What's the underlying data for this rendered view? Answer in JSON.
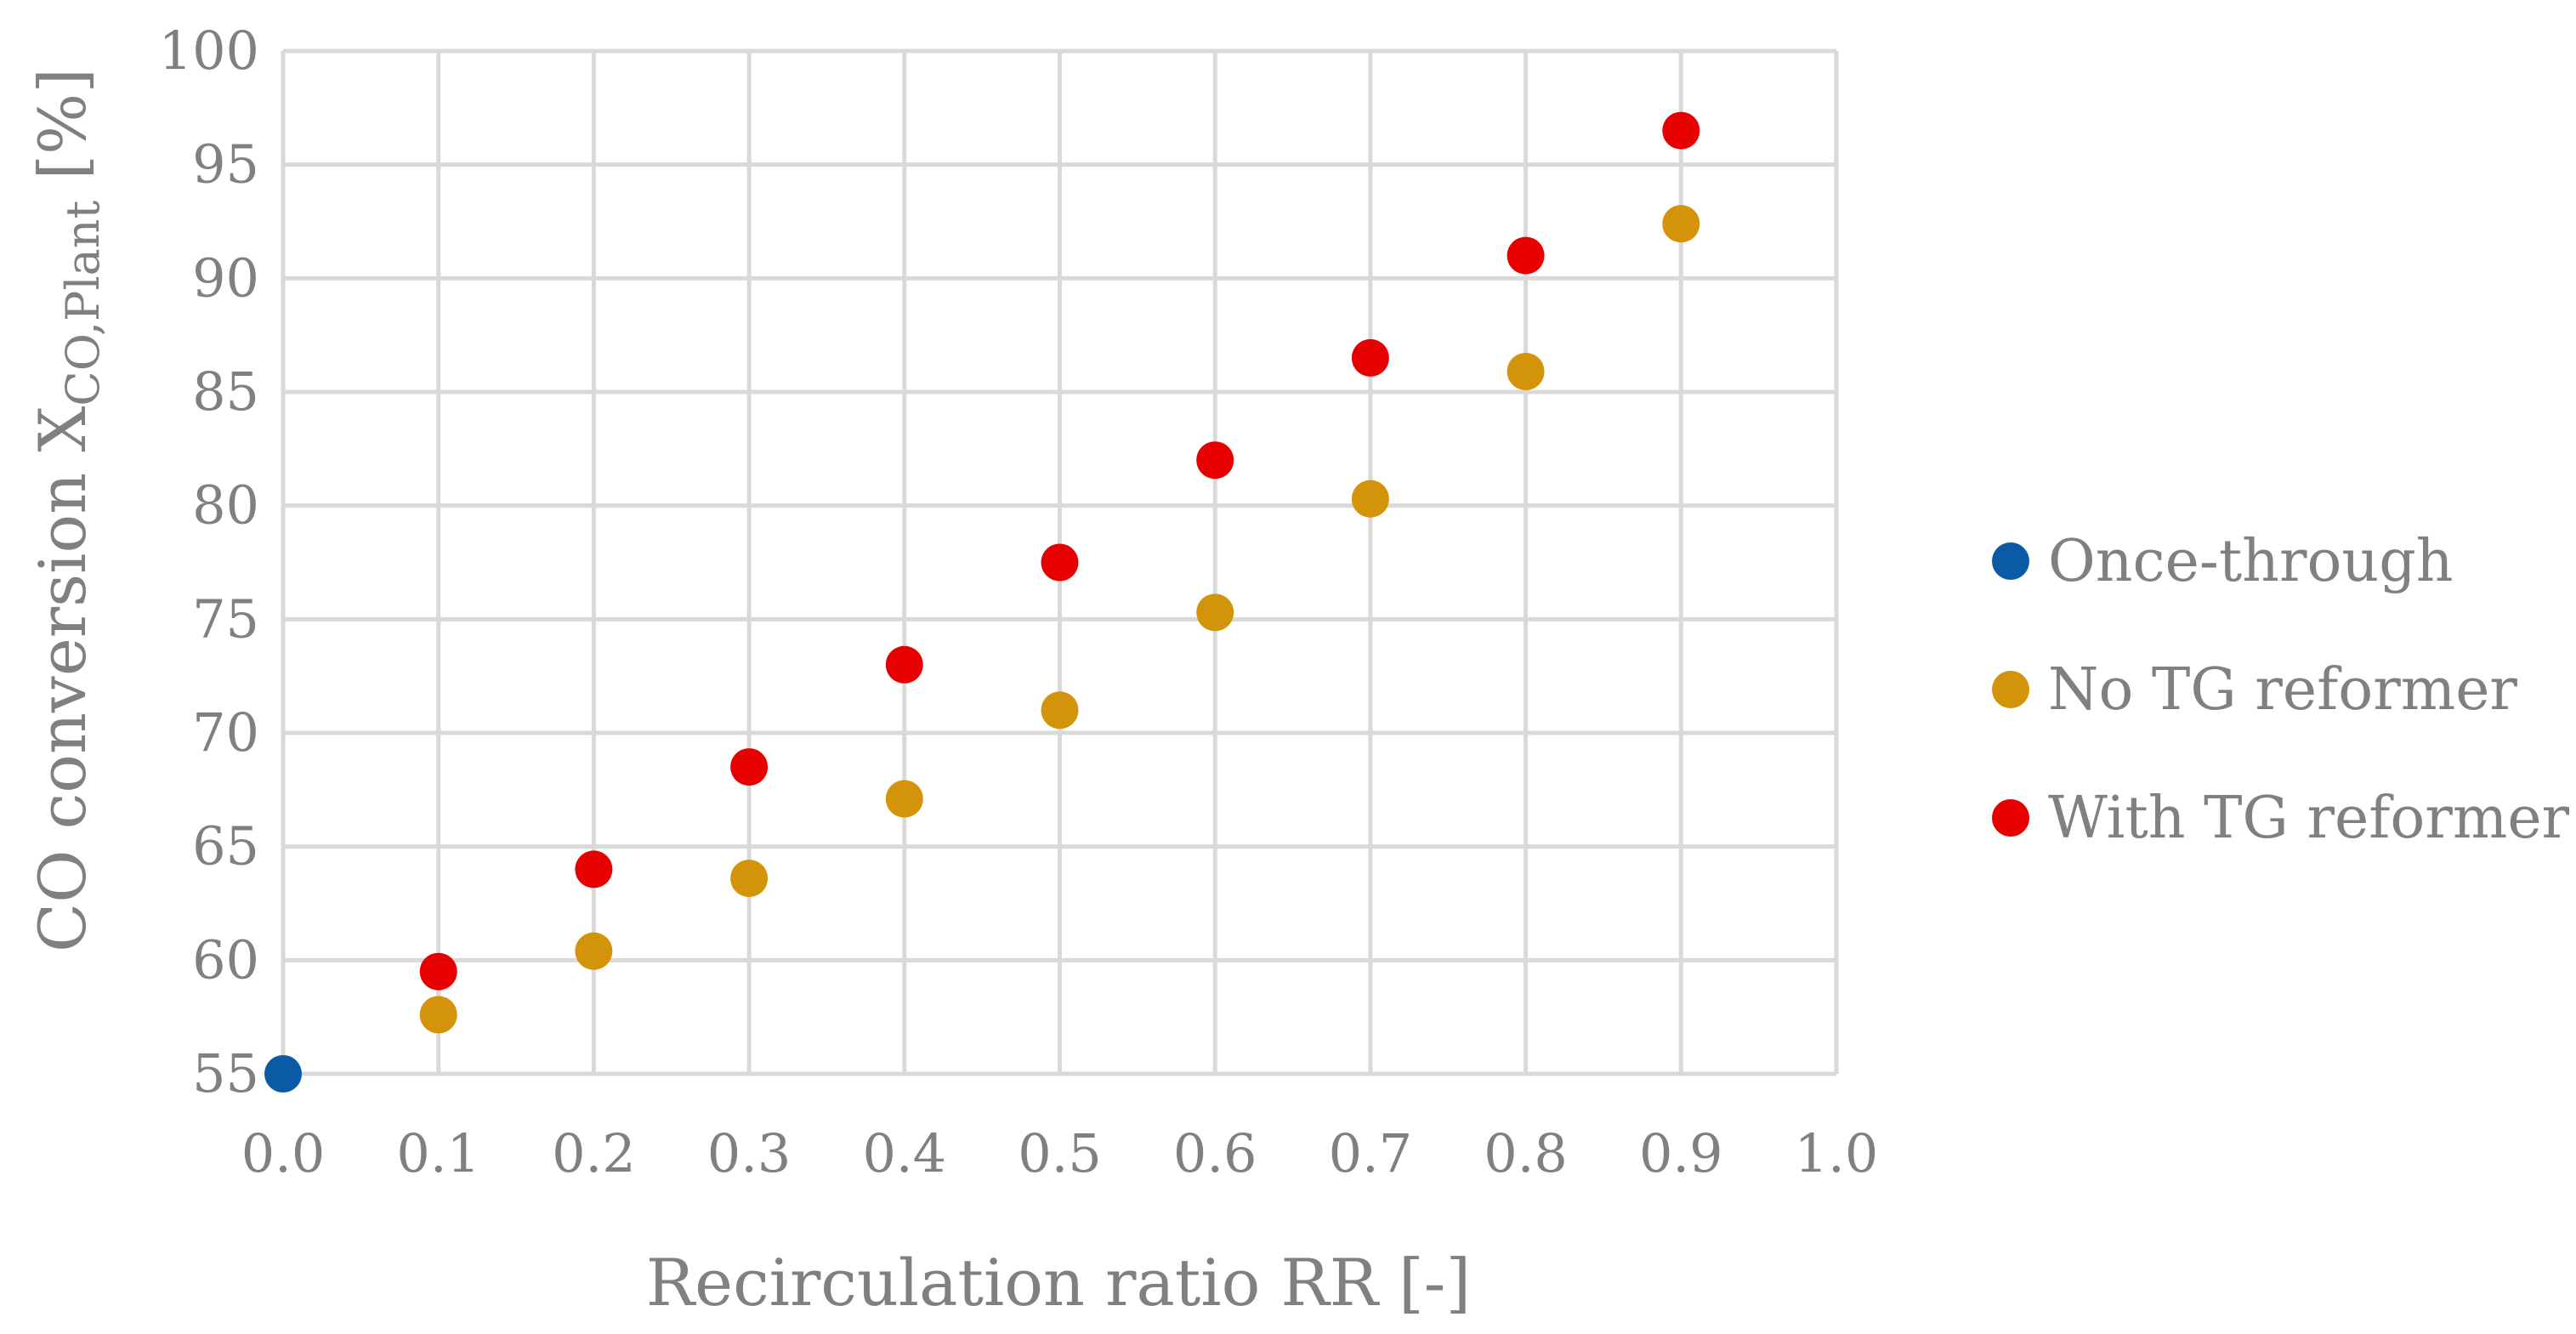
{
  "chart_data": {
    "type": "scatter",
    "title": "",
    "xlabel": "Recirculation ratio RR [-]",
    "ylabel": {
      "main": "CO conversion X",
      "subscript": "CO,Plant",
      "suffix": " [%]"
    },
    "xlim": [
      0.0,
      1.0
    ],
    "ylim": [
      55,
      100
    ],
    "x_ticks": [
      "0.0",
      "0.1",
      "0.2",
      "0.3",
      "0.4",
      "0.5",
      "0.6",
      "0.7",
      "0.8",
      "0.9",
      "1.0"
    ],
    "y_ticks": [
      "55",
      "60",
      "65",
      "70",
      "75",
      "80",
      "85",
      "90",
      "95",
      "100"
    ],
    "grid": true,
    "legend_position": "right",
    "series": [
      {
        "name": "Once-through",
        "color": "#0b5aa5",
        "points": [
          {
            "x": 0.0,
            "y": 55.0
          }
        ]
      },
      {
        "name": "No TG reformer",
        "color": "#d4940a",
        "points": [
          {
            "x": 0.1,
            "y": 57.6
          },
          {
            "x": 0.2,
            "y": 60.4
          },
          {
            "x": 0.3,
            "y": 63.6
          },
          {
            "x": 0.4,
            "y": 67.1
          },
          {
            "x": 0.5,
            "y": 71.0
          },
          {
            "x": 0.6,
            "y": 75.3
          },
          {
            "x": 0.7,
            "y": 80.3
          },
          {
            "x": 0.8,
            "y": 85.9
          },
          {
            "x": 0.9,
            "y": 92.4
          }
        ]
      },
      {
        "name": "With TG reformer",
        "color": "#e60000",
        "points": [
          {
            "x": 0.1,
            "y": 59.5
          },
          {
            "x": 0.2,
            "y": 64.0
          },
          {
            "x": 0.3,
            "y": 68.5
          },
          {
            "x": 0.4,
            "y": 73.0
          },
          {
            "x": 0.5,
            "y": 77.5
          },
          {
            "x": 0.6,
            "y": 82.0
          },
          {
            "x": 0.7,
            "y": 86.5
          },
          {
            "x": 0.8,
            "y": 91.0
          },
          {
            "x": 0.9,
            "y": 96.5
          }
        ]
      }
    ]
  }
}
